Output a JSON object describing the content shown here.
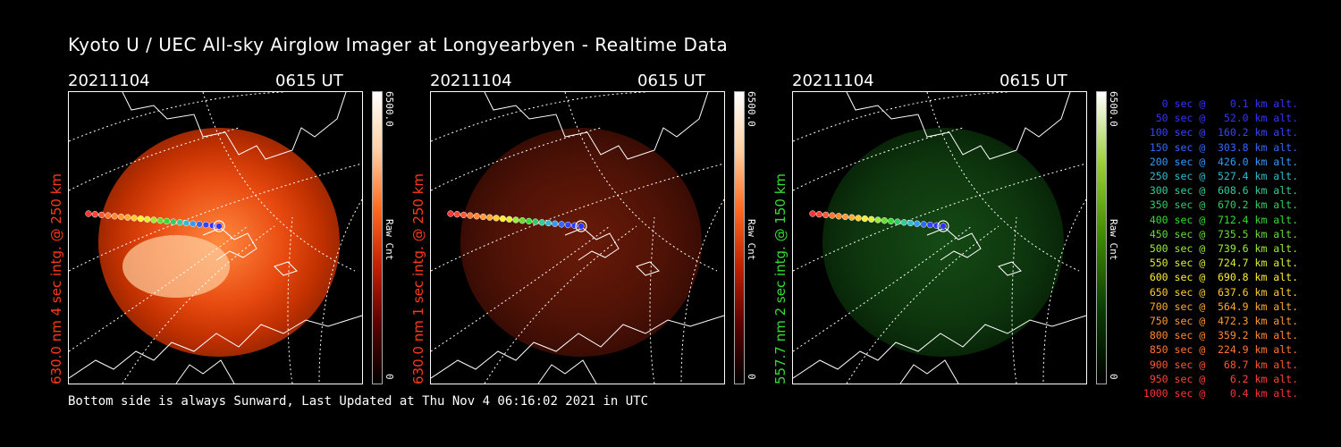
{
  "title": "Kyoto U / UEC All-sky Airglow Imager at Longyearbyen - Realtime Data",
  "panels": [
    {
      "date": "20211104",
      "time": "0615 UT",
      "ylabel": "630.0 nm 4 sec intg. @ 250 km",
      "label_color": "#ff3a1a",
      "cbar_max": "6500.0",
      "cbar_unit": "Raw Cnt",
      "cbar_min": "0",
      "glow": "#ff4400",
      "tint": "red-bright"
    },
    {
      "date": "20211104",
      "time": "0615 UT",
      "ylabel": "630.0 nm 1 sec intg. @ 250 km",
      "label_color": "#ff3a1a",
      "cbar_max": "6500.0",
      "cbar_unit": "Raw Cnt",
      "cbar_min": "0",
      "glow": "#5a1406",
      "tint": "red-dim"
    },
    {
      "date": "20211104",
      "time": "0615 UT",
      "ylabel": "557.7 nm 2 sec intg. @ 150 km",
      "label_color": "#33dd33",
      "cbar_max": "6500.0",
      "cbar_unit": "Raw Cnt",
      "cbar_min": "0",
      "glow": "#0e3a0e",
      "tint": "green"
    }
  ],
  "footer": "Bottom side is always Sunward, Last Updated at Thu Nov  4 06:16:02 2021 in UTC",
  "legend": [
    {
      "text": "   0 sec @    0.1 km alt.",
      "color": "#3333ff"
    },
    {
      "text": "  50 sec @   52.0 km alt.",
      "color": "#3333ff"
    },
    {
      "text": " 100 sec @  160.2 km alt.",
      "color": "#3344ff"
    },
    {
      "text": " 150 sec @  303.8 km alt.",
      "color": "#3366ff"
    },
    {
      "text": " 200 sec @  426.0 km alt.",
      "color": "#3399ff"
    },
    {
      "text": " 250 sec @  527.4 km alt.",
      "color": "#33bbcc"
    },
    {
      "text": " 300 sec @  608.6 km alt.",
      "color": "#33cc99"
    },
    {
      "text": " 350 sec @  670.2 km alt.",
      "color": "#33cc66"
    },
    {
      "text": " 400 sec @  712.4 km alt.",
      "color": "#33dd33"
    },
    {
      "text": " 450 sec @  735.5 km alt.",
      "color": "#66dd33"
    },
    {
      "text": " 500 sec @  739.6 km alt.",
      "color": "#99ee33"
    },
    {
      "text": " 550 sec @  724.7 km alt.",
      "color": "#ddee33"
    },
    {
      "text": " 600 sec @  690.8 km alt.",
      "color": "#ffee33"
    },
    {
      "text": " 650 sec @  637.6 km alt.",
      "color": "#ffcc33"
    },
    {
      "text": " 700 sec @  564.9 km alt.",
      "color": "#ffaa33"
    },
    {
      "text": " 750 sec @  472.3 km alt.",
      "color": "#ff9933"
    },
    {
      "text": " 800 sec @  359.2 km alt.",
      "color": "#ff8833"
    },
    {
      "text": " 850 sec @  224.9 km alt.",
      "color": "#ff7733"
    },
    {
      "text": " 900 sec @   68.7 km alt.",
      "color": "#ff5533"
    },
    {
      "text": " 950 sec @    6.2 km alt.",
      "color": "#ff4433"
    },
    {
      "text": "1000 sec @    0.4 km alt.",
      "color": "#ff3333"
    }
  ]
}
